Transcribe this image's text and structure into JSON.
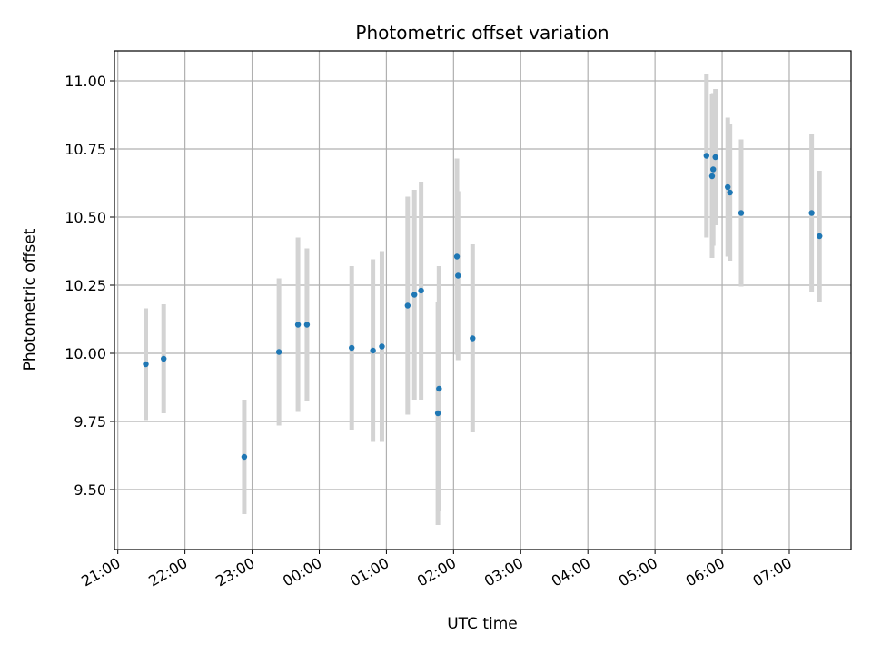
{
  "chart_data": {
    "type": "scatter",
    "title": "Photometric offset variation",
    "xlabel": "UTC time",
    "ylabel": "Photometric offset",
    "x_ticks": [
      "21:00",
      "22:00",
      "23:00",
      "00:00",
      "01:00",
      "02:00",
      "03:00",
      "04:00",
      "05:00",
      "06:00",
      "07:00"
    ],
    "y_ticks": [
      "9.50",
      "9.75",
      "10.00",
      "10.25",
      "10.50",
      "10.75",
      "11.00"
    ],
    "xlim_hours": [
      20.95,
      31.92
    ],
    "ylim": [
      9.28,
      11.11
    ],
    "grid": true,
    "error_bar_color": "#d3d3d3",
    "marker_color": "#1f77b4",
    "points": [
      {
        "t": "21:25",
        "y": 9.96,
        "err": 0.205
      },
      {
        "t": "21:41",
        "y": 9.98,
        "err": 0.2
      },
      {
        "t": "22:53",
        "y": 9.62,
        "err": 0.21
      },
      {
        "t": "23:24",
        "y": 10.005,
        "err": 0.27
      },
      {
        "t": "23:41",
        "y": 10.105,
        "err": 0.32
      },
      {
        "t": "23:49",
        "y": 10.105,
        "err": 0.28
      },
      {
        "t": "00:29",
        "y": 10.02,
        "err": 0.3
      },
      {
        "t": "00:48",
        "y": 10.01,
        "err": 0.335
      },
      {
        "t": "00:56",
        "y": 10.025,
        "err": 0.35
      },
      {
        "t": "01:19",
        "y": 10.175,
        "err": 0.4
      },
      {
        "t": "01:25",
        "y": 10.215,
        "err": 0.385
      },
      {
        "t": "01:31",
        "y": 10.23,
        "err": 0.4
      },
      {
        "t": "01:46",
        "y": 9.78,
        "err": 0.41
      },
      {
        "t": "01:47",
        "y": 9.87,
        "err": 0.45
      },
      {
        "t": "02:03",
        "y": 10.355,
        "err": 0.36
      },
      {
        "t": "02:04",
        "y": 10.285,
        "err": 0.31
      },
      {
        "t": "02:17",
        "y": 10.055,
        "err": 0.345
      },
      {
        "t": "05:46",
        "y": 10.725,
        "err": 0.3
      },
      {
        "t": "05:51",
        "y": 10.65,
        "err": 0.3
      },
      {
        "t": "05:52",
        "y": 10.675,
        "err": 0.28
      },
      {
        "t": "05:54",
        "y": 10.72,
        "err": 0.25
      },
      {
        "t": "06:05",
        "y": 10.61,
        "err": 0.255
      },
      {
        "t": "06:07",
        "y": 10.59,
        "err": 0.25
      },
      {
        "t": "06:17",
        "y": 10.515,
        "err": 0.27
      },
      {
        "t": "07:20",
        "y": 10.515,
        "err": 0.29
      },
      {
        "t": "07:27",
        "y": 10.43,
        "err": 0.24
      }
    ]
  }
}
